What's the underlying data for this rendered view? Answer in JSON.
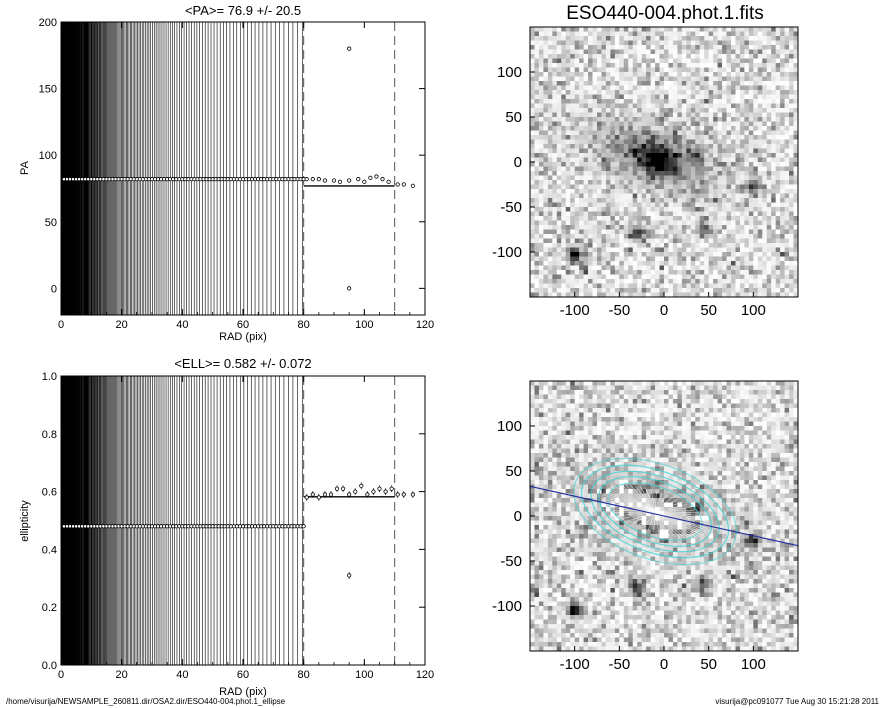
{
  "chart_data": [
    {
      "type": "scatter",
      "title": "<PA>=  76.9 +/-  20.5",
      "xlabel": "RAD (pix)",
      "ylabel": "PA",
      "xlim": [
        0,
        120
      ],
      "ylim": [
        -20,
        200
      ],
      "xticks": [
        0,
        20,
        40,
        60,
        80,
        100,
        120
      ],
      "yticks": [
        0,
        50,
        100,
        150,
        200
      ],
      "dense_vertical_lines": "radii 0 to 80",
      "vertical_dashed_lines": [
        80,
        110
      ],
      "mean_segment": {
        "x": [
          80,
          110
        ],
        "y": 76.9
      },
      "series": [
        {
          "x": [
            1,
            2,
            3,
            4,
            5,
            6,
            7,
            8,
            9,
            10,
            11,
            12,
            13,
            14,
            15,
            16,
            17,
            18,
            19,
            20,
            21,
            22,
            23,
            24,
            25,
            26,
            27,
            28,
            29,
            30,
            31,
            32,
            33,
            34,
            35,
            36,
            37,
            38,
            39,
            40,
            41,
            42,
            43,
            44,
            45,
            46,
            47,
            48,
            49,
            50,
            51,
            52,
            53,
            54,
            55,
            56,
            57,
            58,
            59,
            60,
            61,
            62,
            63,
            64,
            65,
            66,
            67,
            68,
            69,
            70,
            71,
            72,
            73,
            74,
            75,
            76,
            77,
            78,
            79,
            80
          ],
          "y": [
            82,
            82,
            82,
            82,
            82,
            82,
            82,
            82,
            82,
            82,
            82,
            82,
            82,
            82,
            82,
            82,
            82,
            82,
            82,
            82,
            82,
            82,
            82,
            82,
            82,
            82,
            82,
            82,
            82,
            82,
            82,
            82,
            82,
            82,
            82,
            82,
            82,
            82,
            82,
            82,
            82,
            82,
            82,
            82,
            82,
            82,
            82,
            82,
            82,
            82,
            82,
            82,
            82,
            82,
            82,
            82,
            82,
            82,
            82,
            82,
            82,
            82,
            82,
            82,
            82,
            82,
            82,
            82,
            82,
            82,
            82,
            82,
            82,
            82,
            82,
            82,
            82,
            82,
            82,
            82
          ]
        },
        {
          "x": [
            81,
            83,
            85,
            87,
            90,
            92,
            95,
            95,
            95,
            98,
            100,
            102,
            104,
            106,
            108,
            111,
            113,
            116
          ],
          "y": [
            82,
            82,
            82,
            81,
            81,
            80,
            180,
            0,
            81,
            82,
            80,
            83,
            84,
            82,
            80,
            78,
            78,
            77
          ]
        }
      ]
    },
    {
      "type": "scatter",
      "title": "<ELL>= 0.582 +/-  0.072",
      "xlabel": "RAD (pix)",
      "ylabel": "ellipticity",
      "xlim": [
        0,
        120
      ],
      "ylim": [
        0,
        1
      ],
      "xticks": [
        0,
        20,
        40,
        60,
        80,
        100,
        120
      ],
      "yticks": [
        0.0,
        0.2,
        0.4,
        0.6,
        0.8,
        1.0
      ],
      "dense_vertical_lines": "radii 0 to 80",
      "vertical_dashed_lines": [
        80,
        110
      ],
      "mean_segment": {
        "x": [
          80,
          110
        ],
        "y": 0.582
      },
      "series": [
        {
          "x": [
            1,
            2,
            3,
            4,
            5,
            6,
            7,
            8,
            9,
            10,
            11,
            12,
            13,
            14,
            15,
            16,
            17,
            18,
            19,
            20,
            21,
            22,
            23,
            24,
            25,
            26,
            27,
            28,
            29,
            30,
            31,
            32,
            33,
            34,
            35,
            36,
            37,
            38,
            39,
            40,
            41,
            42,
            43,
            44,
            45,
            46,
            47,
            48,
            49,
            50,
            51,
            52,
            53,
            54,
            55,
            56,
            57,
            58,
            59,
            60,
            61,
            62,
            63,
            64,
            65,
            66,
            67,
            68,
            69,
            70,
            71,
            72,
            73,
            74,
            75,
            76,
            77,
            78,
            79,
            80
          ],
          "y": [
            0.48,
            0.48,
            0.48,
            0.48,
            0.48,
            0.48,
            0.48,
            0.48,
            0.48,
            0.48,
            0.48,
            0.48,
            0.48,
            0.48,
            0.48,
            0.48,
            0.48,
            0.48,
            0.48,
            0.48,
            0.48,
            0.48,
            0.48,
            0.48,
            0.48,
            0.48,
            0.48,
            0.48,
            0.48,
            0.48,
            0.48,
            0.48,
            0.48,
            0.48,
            0.48,
            0.48,
            0.48,
            0.48,
            0.48,
            0.48,
            0.48,
            0.48,
            0.48,
            0.48,
            0.48,
            0.48,
            0.48,
            0.48,
            0.48,
            0.48,
            0.48,
            0.48,
            0.48,
            0.48,
            0.48,
            0.48,
            0.48,
            0.48,
            0.48,
            0.48,
            0.48,
            0.48,
            0.48,
            0.48,
            0.48,
            0.48,
            0.48,
            0.48,
            0.48,
            0.48,
            0.48,
            0.48,
            0.48,
            0.48,
            0.48,
            0.48,
            0.48,
            0.48,
            0.48,
            0.48
          ]
        },
        {
          "x": [
            81,
            83,
            85,
            87,
            89,
            91,
            93,
            95,
            95,
            97,
            99,
            101,
            103,
            105,
            107,
            109,
            111,
            113,
            116
          ],
          "y": [
            0.58,
            0.59,
            0.58,
            0.59,
            0.59,
            0.61,
            0.61,
            0.31,
            0.59,
            0.6,
            0.62,
            0.59,
            0.6,
            0.61,
            0.6,
            0.61,
            0.59,
            0.59,
            0.59
          ]
        }
      ]
    },
    {
      "type": "heatmap",
      "title": "ESO440-004.phot.1.fits",
      "xlim": [
        -150,
        150
      ],
      "ylim": [
        -150,
        150
      ],
      "xticks": [
        -100,
        -50,
        0,
        50,
        100
      ],
      "yticks": [
        -100,
        -50,
        0,
        50,
        100
      ],
      "colormap": "inverted grayscale"
    },
    {
      "type": "heatmap",
      "title": "",
      "xlim": [
        -150,
        150
      ],
      "ylim": [
        -150,
        150
      ],
      "xticks": [
        -100,
        -50,
        0,
        50,
        100
      ],
      "yticks": [
        -100,
        -50,
        0,
        50,
        100
      ],
      "colormap": "inverted grayscale",
      "overlay_color": "#40d0d0",
      "major_axis_line_color": "#2030a0"
    }
  ],
  "footer": {
    "path": "/home/visurija/NEWSAMPLE_260811.dir/OSA2.dir/ESO440-004.phot.1_ellipse",
    "user_time": "visurija@pc091077  Tue Aug 30 15:21:28 2011"
  }
}
